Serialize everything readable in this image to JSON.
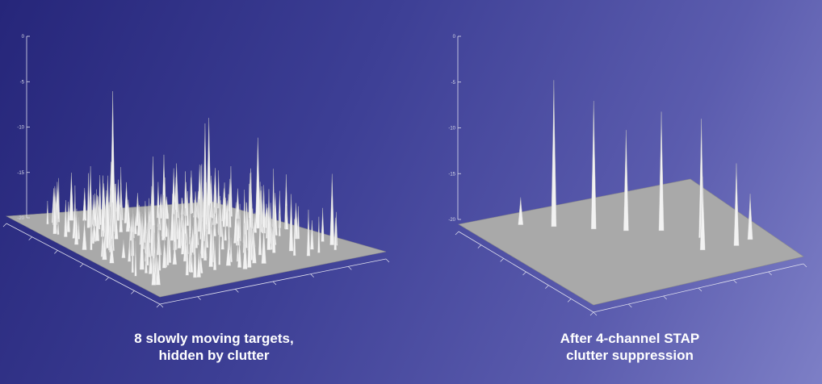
{
  "captions": {
    "left": [
      "8 slowly moving targets,",
      "hidden by clutter"
    ],
    "right": [
      "After 4-channel STAP",
      "clutter suppression"
    ]
  },
  "colors": {
    "background_start": "#26267a",
    "background_end": "#7d7fc6",
    "floor": "#a9a9a9",
    "spikes": "#f2f2f2",
    "caption_text": "#ffffff"
  },
  "chart_data": [
    {
      "type": "surface-3d",
      "title": "8 slowly moving targets, hidden by clutter",
      "z_ticks": [
        "0",
        "-5",
        "-10",
        "-15",
        "-20"
      ],
      "zlim": [
        -20,
        0
      ],
      "surface": "dense clutter spikes across floor; isolated peaks near -3 to -6",
      "peaks_z": [
        -4.5,
        -7,
        -8,
        -9,
        -10,
        -11,
        -11.5,
        -12
      ],
      "clutter_level_z": [
        -16,
        -13
      ]
    },
    {
      "type": "surface-3d",
      "title": "After 4-channel STAP clutter suppression",
      "z_ticks": [
        "0",
        "-5",
        "-10",
        "-15",
        "-20"
      ],
      "zlim": [
        -20,
        0
      ],
      "surface": "clutter suppressed; 8 target spikes remain plus small residuals",
      "peaks_z": [
        -4,
        -6,
        -9,
        -7,
        -7,
        -12,
        -11,
        -15,
        -17
      ],
      "clutter_level_z": [
        -20,
        -20
      ]
    }
  ]
}
